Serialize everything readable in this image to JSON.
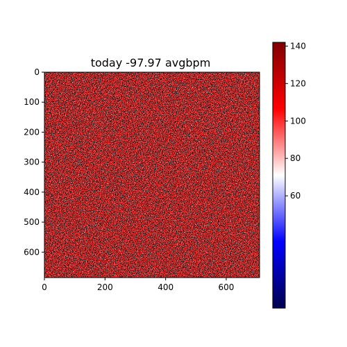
{
  "chart_data": {
    "type": "heatmap",
    "title": "today -97.97 avgbpm",
    "xlabel": "",
    "ylabel": "",
    "x_ticks": [
      0,
      200,
      400,
      600
    ],
    "y_ticks": [
      0,
      100,
      200,
      300,
      400,
      500,
      600
    ],
    "xlim": [
      0,
      710
    ],
    "ylim": [
      685,
      0
    ],
    "colorbar": {
      "ticks": [
        60,
        80,
        100,
        120,
        140
      ],
      "range": [
        0,
        142
      ],
      "colormap": "seismic",
      "colors": [
        "#00004d",
        "#0000ff",
        "#ffffff",
        "#ff0000",
        "#800000"
      ]
    },
    "value_distribution": "mostly 80-110, red texture with scattered dark speckles",
    "grid": false
  }
}
